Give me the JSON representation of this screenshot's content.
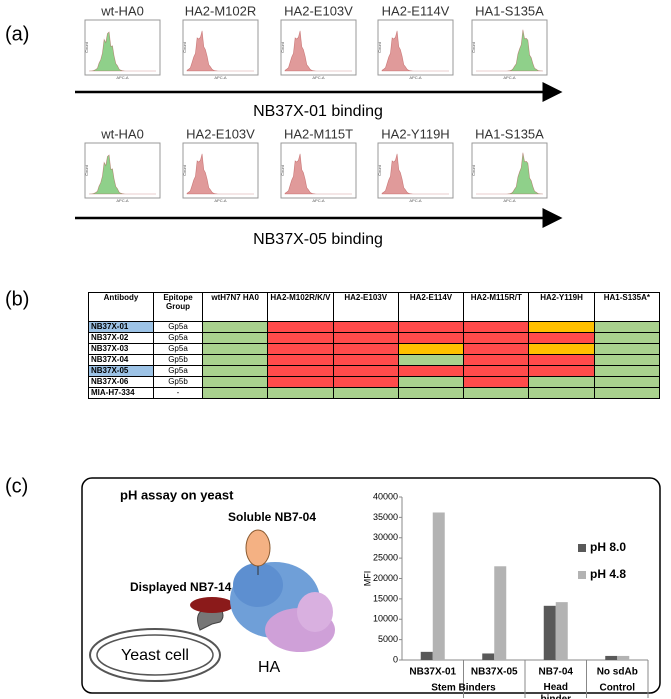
{
  "panel_a": {
    "label": "(a)",
    "axis_y": "Count",
    "axis_x": "APC-A",
    "rows": [
      {
        "titles": [
          "wt-HA0",
          "HA2-M102R",
          "HA2-E103V",
          "HA2-E114V",
          "HA1-S135A"
        ],
        "colors": [
          "#8fd08a",
          "#e09a9a",
          "#e09a9a",
          "#e09a9a",
          "#8fd08a"
        ],
        "caption": "NB37X-01 binding"
      },
      {
        "titles": [
          "wt-HA0",
          "HA2-E103V",
          "HA2-M115T",
          "HA2-Y119H",
          "HA1-S135A"
        ],
        "colors": [
          "#8fd08a",
          "#e09a9a",
          "#e09a9a",
          "#e09a9a",
          "#8fd08a"
        ],
        "caption": "NB37X-05 binding"
      }
    ]
  },
  "panel_b": {
    "label": "(b)",
    "table": {
      "header": [
        "Antibody",
        "Epitope Group",
        "wtH7N7 HA0",
        "HA2-M102R/K/V",
        "HA2-E103V",
        "HA2-E114V",
        "HA2-M115R/T",
        "HA2-Y119H",
        "HA1-S135A*"
      ],
      "rows": [
        {
          "antibody": "NB37X-01",
          "group": "Gp5a",
          "highlight": "#9dc3e6",
          "cells": [
            "#a9d18e",
            "#ff4b4b",
            "#ff4b4b",
            "#ff4b4b",
            "#ff4b4b",
            "#ffc000",
            "#a9d18e"
          ]
        },
        {
          "antibody": "NB37X-02",
          "group": "Gp5a",
          "highlight": "#ffffff",
          "cells": [
            "#a9d18e",
            "#ff4b4b",
            "#ff4b4b",
            "#ff4b4b",
            "#ff4b4b",
            "#ff4b4b",
            "#a9d18e"
          ]
        },
        {
          "antibody": "NB37X-03",
          "group": "Gp5a",
          "highlight": "#ffffff",
          "cells": [
            "#a9d18e",
            "#ff4b4b",
            "#ff4b4b",
            "#ffc000",
            "#ff4b4b",
            "#ffc000",
            "#a9d18e"
          ]
        },
        {
          "antibody": "NB37X-04",
          "group": "Gp5b",
          "highlight": "#ffffff",
          "cells": [
            "#a9d18e",
            "#ff4b4b",
            "#ff4b4b",
            "#a9d18e",
            "#ff4b4b",
            "#ff4b4b",
            "#a9d18e"
          ]
        },
        {
          "antibody": "NB37X-05",
          "group": "Gp5a",
          "highlight": "#9dc3e6",
          "cells": [
            "#a9d18e",
            "#ff4b4b",
            "#ff4b4b",
            "#ff4b4b",
            "#ff4b4b",
            "#ff4b4b",
            "#a9d18e"
          ]
        },
        {
          "antibody": "NB37X-06",
          "group": "Gp5b",
          "highlight": "#ffffff",
          "cells": [
            "#a9d18e",
            "#ff4b4b",
            "#ff4b4b",
            "#a9d18e",
            "#ff4b4b",
            "#a9d18e",
            "#a9d18e"
          ]
        },
        {
          "antibody": "MIA-H7-334",
          "group": "-",
          "highlight": "#ffffff",
          "cells": [
            "#a9d18e",
            "#a9d18e",
            "#a9d18e",
            "#a9d18e",
            "#a9d18e",
            "#a9d18e",
            "#a9d18e"
          ]
        }
      ]
    }
  },
  "panel_c": {
    "label": "(c)",
    "title": "pH assay on yeast",
    "soluble": "Soluble NB7-04",
    "displayed": "Displayed NB7-14",
    "cell": "Yeast cell",
    "ha": "HA"
  },
  "chart_data": {
    "type": "bar",
    "ylabel": "MFI",
    "categories": [
      "NB37X-01",
      "NB37X-05",
      "NB7-04",
      "No sdAb"
    ],
    "groups": [
      {
        "label": "Stem Binders",
        "categories": [
          "NB37X-01",
          "NB37X-05"
        ]
      },
      {
        "label": "Head binder",
        "categories": [
          "NB7-04"
        ]
      },
      {
        "label": "Control",
        "categories": [
          "No sdAb"
        ]
      }
    ],
    "series": [
      {
        "name": "pH 8.0",
        "color": "#595959",
        "values": [
          2000,
          1600,
          13300,
          1000
        ]
      },
      {
        "name": "pH 4.8",
        "color": "#b3b3b3",
        "values": [
          36200,
          23000,
          14200,
          1000
        ]
      }
    ],
    "ylim": [
      0,
      40000
    ],
    "yticks": [
      0,
      5000,
      10000,
      15000,
      20000,
      25000,
      30000,
      35000,
      40000
    ],
    "legend": "right"
  }
}
